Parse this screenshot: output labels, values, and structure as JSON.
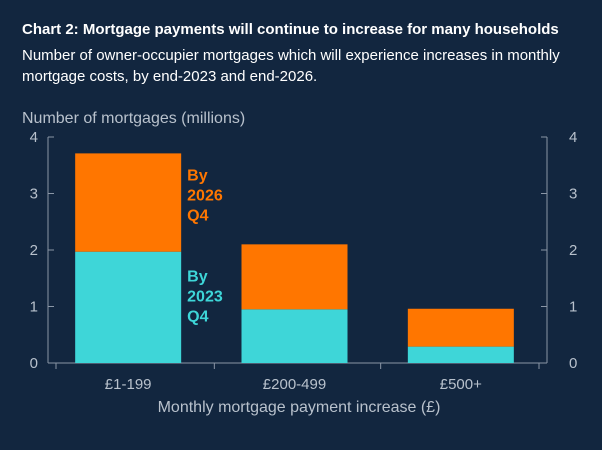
{
  "header": {
    "title": "Chart 2: Mortgage payments will continue to increase for many households",
    "subtitle": "Number of owner-occupier mortgages which will experience increases in monthly mortgage costs, by end-2023 and end-2026."
  },
  "chart_data": {
    "type": "bar",
    "stacked": true,
    "categories": [
      "£1-199",
      "£200-499",
      "£500+"
    ],
    "series": [
      {
        "name": "By 2023 Q4",
        "values": [
          1.97,
          0.95,
          0.29
        ],
        "color": "#3ed6d8"
      },
      {
        "name": "By 2026 Q4",
        "values": [
          1.74,
          1.15,
          0.67
        ],
        "color": "#ff7600"
      }
    ],
    "title": "",
    "xlabel": "Monthly mortgage payment increase (£)",
    "ylabel": "Number of mortgages (millions)",
    "ylim": [
      0,
      4
    ],
    "yticks": [
      "0",
      "1",
      "2",
      "3",
      "4"
    ],
    "grid": false,
    "legend": "inline labels beside first bar",
    "label_lines": [
      [
        "By",
        "2023",
        "Q4"
      ],
      [
        "By",
        "2026",
        "Q4"
      ]
    ]
  }
}
